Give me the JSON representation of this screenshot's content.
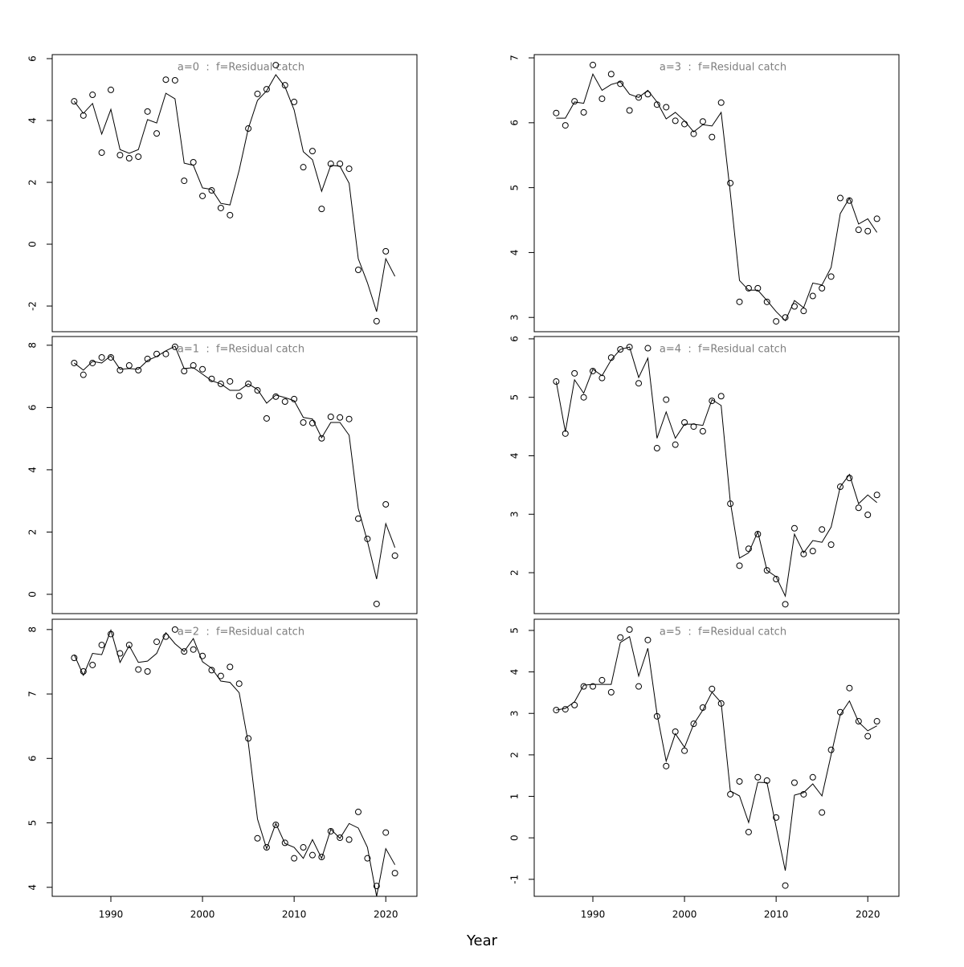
{
  "xlabel": "Year",
  "chart_data": [
    {
      "type": "line",
      "title": "a=0  :  f=Residual catch",
      "x": [
        1986,
        1987,
        1988,
        1989,
        1990,
        1991,
        1992,
        1993,
        1994,
        1995,
        1996,
        1997,
        1998,
        1999,
        2000,
        2001,
        2002,
        2003,
        2004,
        2005,
        2006,
        2007,
        2008,
        2009,
        2010,
        2011,
        2012,
        2013,
        2014,
        2015,
        2016,
        2017,
        2018,
        2019,
        2020,
        2021
      ],
      "xlim": [
        1983.6,
        2023.4
      ],
      "ylim": [
        -2.83,
        6.13
      ],
      "yticks": [
        -2,
        0,
        2,
        4,
        6
      ],
      "series": [
        {
          "marker": "circle",
          "color": "#000000",
          "values": [
            4.62,
            4.16,
            4.83,
            2.96,
            4.99,
            2.88,
            2.78,
            2.83,
            4.29,
            3.58,
            5.32,
            5.3,
            2.05,
            2.65,
            1.56,
            1.74,
            1.17,
            0.94,
            null,
            3.74,
            4.86,
            5.01,
            5.79,
            5.14,
            4.6,
            2.49,
            3.01,
            1.14,
            2.6,
            2.6,
            2.44,
            -0.83,
            null,
            -2.49,
            -0.23,
            null
          ]
        },
        {
          "marker": "line",
          "color": "#000000",
          "values": [
            4.62,
            4.23,
            4.55,
            3.56,
            4.36,
            3.06,
            2.94,
            3.06,
            4.03,
            3.92,
            4.88,
            4.7,
            2.62,
            2.55,
            1.82,
            1.77,
            1.32,
            1.27,
            2.39,
            3.74,
            4.65,
            4.96,
            5.48,
            5.09,
            4.34,
            2.99,
            2.73,
            1.71,
            2.55,
            2.52,
            1.97,
            -0.47,
            -1.25,
            -2.18,
            -0.47,
            -1.04
          ]
        }
      ]
    },
    {
      "type": "line",
      "title": "a=1  :  f=Residual catch",
      "x": [
        1986,
        1987,
        1988,
        1989,
        1990,
        1991,
        1992,
        1993,
        1994,
        1995,
        1996,
        1997,
        1998,
        1999,
        2000,
        2001,
        2002,
        2003,
        2004,
        2005,
        2006,
        2007,
        2008,
        2009,
        2010,
        2011,
        2012,
        2013,
        2014,
        2015,
        2016,
        2017,
        2018,
        2019,
        2020,
        2021
      ],
      "xlim": [
        1983.6,
        2023.4
      ],
      "ylim": [
        -0.62,
        8.28
      ],
      "yticks": [
        0,
        2,
        4,
        6,
        8
      ],
      "series": [
        {
          "marker": "circle",
          "color": "#000000",
          "values": [
            7.43,
            7.05,
            7.43,
            7.61,
            7.61,
            7.2,
            7.35,
            7.2,
            7.56,
            7.72,
            7.72,
            7.95,
            7.17,
            7.35,
            7.23,
            6.92,
            6.76,
            6.84,
            6.37,
            6.76,
            6.55,
            5.65,
            6.35,
            6.19,
            6.27,
            5.52,
            5.5,
            5.01,
            5.7,
            5.68,
            5.63,
            2.43,
            1.78,
            -0.31,
            2.89,
            1.24
          ]
        },
        {
          "marker": "line",
          "color": "#000000",
          "values": [
            7.43,
            7.2,
            7.48,
            7.43,
            7.66,
            7.23,
            7.25,
            7.23,
            7.51,
            7.64,
            7.82,
            7.97,
            7.25,
            7.28,
            7.07,
            6.86,
            6.76,
            6.55,
            6.55,
            6.76,
            6.58,
            6.14,
            6.4,
            6.32,
            6.22,
            5.68,
            5.63,
            5.03,
            5.52,
            5.52,
            5.11,
            2.76,
            1.7,
            0.49,
            2.27,
            1.5
          ]
        }
      ]
    },
    {
      "type": "line",
      "title": "a=2  :  f=Residual catch",
      "x": [
        1986,
        1987,
        1988,
        1989,
        1990,
        1991,
        1992,
        1993,
        1994,
        1995,
        1996,
        1997,
        1998,
        1999,
        2000,
        2001,
        2002,
        2003,
        2004,
        2005,
        2006,
        2007,
        2008,
        2009,
        2010,
        2011,
        2012,
        2013,
        2014,
        2015,
        2016,
        2017,
        2018,
        2019,
        2020,
        2021
      ],
      "xlim": [
        1983.6,
        2023.4
      ],
      "ylim": [
        3.86,
        8.16
      ],
      "yticks": [
        4,
        5,
        6,
        7,
        8
      ],
      "xticks": [
        1990,
        2000,
        2010,
        2020
      ],
      "series": [
        {
          "marker": "circle",
          "color": "#000000",
          "values": [
            7.56,
            7.35,
            7.45,
            7.76,
            7.93,
            7.63,
            7.76,
            7.38,
            7.35,
            7.81,
            7.89,
            8.0,
            7.66,
            7.69,
            7.59,
            7.37,
            7.28,
            7.42,
            7.16,
            6.31,
            4.76,
            4.62,
            4.97,
            4.69,
            4.45,
            4.62,
            4.5,
            4.47,
            4.87,
            4.77,
            4.74,
            5.17,
            4.45,
            4.02,
            4.85,
            4.22
          ]
        },
        {
          "marker": "line",
          "color": "#000000",
          "values": [
            7.61,
            7.29,
            7.63,
            7.61,
            7.99,
            7.49,
            7.75,
            7.49,
            7.51,
            7.63,
            7.95,
            7.78,
            7.66,
            7.86,
            7.5,
            7.4,
            7.2,
            7.18,
            7.02,
            6.24,
            5.06,
            4.6,
            4.99,
            4.68,
            4.62,
            4.45,
            4.74,
            4.45,
            4.9,
            4.76,
            4.99,
            4.92,
            4.62,
            3.86,
            4.6,
            4.35
          ]
        }
      ]
    },
    {
      "type": "line",
      "title": "a=3  :  f=Residual catch",
      "x": [
        1986,
        1987,
        1988,
        1989,
        1990,
        1991,
        1992,
        1993,
        1994,
        1995,
        1996,
        1997,
        1998,
        1999,
        2000,
        2001,
        2002,
        2003,
        2004,
        2005,
        2006,
        2007,
        2008,
        2009,
        2010,
        2011,
        2012,
        2013,
        2014,
        2015,
        2016,
        2017,
        2018,
        2019,
        2020,
        2021
      ],
      "xlim": [
        1983.6,
        2023.4
      ],
      "ylim": [
        2.78,
        7.05
      ],
      "yticks": [
        3,
        4,
        5,
        6,
        7
      ],
      "series": [
        {
          "marker": "circle",
          "color": "#000000",
          "values": [
            6.15,
            5.96,
            6.33,
            6.16,
            6.89,
            6.37,
            6.75,
            6.6,
            6.19,
            6.39,
            6.44,
            6.28,
            6.24,
            6.03,
            5.98,
            5.83,
            6.02,
            5.78,
            6.31,
            5.07,
            3.24,
            3.45,
            3.45,
            3.24,
            2.94,
            3.0,
            3.17,
            3.1,
            3.33,
            3.45,
            3.63,
            4.84,
            4.8,
            4.35,
            4.33,
            4.52
          ]
        },
        {
          "marker": "line",
          "color": "#000000",
          "values": [
            6.07,
            6.07,
            6.32,
            6.3,
            6.75,
            6.5,
            6.59,
            6.63,
            6.44,
            6.39,
            6.5,
            6.32,
            6.06,
            6.16,
            6.03,
            5.86,
            5.97,
            5.95,
            6.16,
            4.92,
            3.57,
            3.42,
            3.42,
            3.26,
            3.09,
            2.95,
            3.26,
            3.15,
            3.53,
            3.5,
            3.77,
            4.6,
            4.84,
            4.44,
            4.52,
            4.31
          ]
        }
      ]
    },
    {
      "type": "line",
      "title": "a=4  :  f=Residual catch",
      "x": [
        1986,
        1987,
        1988,
        1989,
        1990,
        1991,
        1992,
        1993,
        1994,
        1995,
        1996,
        1997,
        1998,
        1999,
        2000,
        2001,
        2002,
        2003,
        2004,
        2005,
        2006,
        2007,
        2008,
        2009,
        2010,
        2011,
        2012,
        2013,
        2014,
        2015,
        2016,
        2017,
        2018,
        2019,
        2020,
        2021
      ],
      "xlim": [
        1983.6,
        2023.4
      ],
      "ylim": [
        1.3,
        6.04
      ],
      "yticks": [
        2,
        3,
        4,
        5,
        6
      ],
      "series": [
        {
          "marker": "circle",
          "color": "#000000",
          "values": [
            5.27,
            4.38,
            5.41,
            5.0,
            5.45,
            5.33,
            5.68,
            5.82,
            5.86,
            5.24,
            5.84,
            4.13,
            4.96,
            4.19,
            4.57,
            4.5,
            4.42,
            4.94,
            5.02,
            3.18,
            2.12,
            2.41,
            2.66,
            2.04,
            1.89,
            1.46,
            2.76,
            2.32,
            2.37,
            2.74,
            2.48,
            3.47,
            3.62,
            3.11,
            2.99,
            3.33
          ]
        },
        {
          "marker": "line",
          "color": "#000000",
          "values": [
            5.27,
            4.41,
            5.3,
            5.07,
            5.48,
            5.37,
            5.64,
            5.82,
            5.86,
            5.34,
            5.67,
            4.3,
            4.75,
            4.3,
            4.54,
            4.54,
            4.52,
            4.96,
            4.86,
            3.21,
            2.25,
            2.34,
            2.7,
            2.04,
            1.93,
            1.6,
            2.66,
            2.34,
            2.55,
            2.52,
            2.78,
            3.47,
            3.68,
            3.18,
            3.33,
            3.2
          ]
        }
      ]
    },
    {
      "type": "line",
      "title": "a=5  :  f=Residual catch",
      "x": [
        1986,
        1987,
        1988,
        1989,
        1990,
        1991,
        1992,
        1993,
        1994,
        1995,
        1996,
        1997,
        1998,
        1999,
        2000,
        2001,
        2002,
        2003,
        2004,
        2005,
        2006,
        2007,
        2008,
        2009,
        2010,
        2011,
        2012,
        2013,
        2014,
        2015,
        2016,
        2017,
        2018,
        2019,
        2020,
        2021
      ],
      "xlim": [
        1983.6,
        2023.4
      ],
      "ylim": [
        -1.41,
        5.27
      ],
      "yticks": [
        -1,
        0,
        1,
        2,
        3,
        4,
        5
      ],
      "xticks": [
        1990,
        2000,
        2010,
        2020
      ],
      "series": [
        {
          "marker": "circle",
          "color": "#000000",
          "values": [
            3.08,
            3.1,
            3.2,
            3.65,
            3.65,
            3.8,
            3.51,
            4.83,
            5.02,
            3.65,
            4.77,
            2.93,
            1.73,
            2.56,
            2.1,
            2.75,
            3.14,
            3.59,
            3.24,
            1.05,
            1.36,
            0.14,
            1.46,
            1.38,
            0.49,
            -1.15,
            1.33,
            1.05,
            1.46,
            0.61,
            2.12,
            3.03,
            3.61,
            2.81,
            2.45,
            2.81
          ]
        },
        {
          "marker": "line",
          "color": "#000000",
          "values": [
            3.08,
            3.12,
            3.28,
            3.68,
            3.7,
            3.7,
            3.7,
            4.71,
            4.85,
            3.9,
            4.57,
            2.99,
            1.85,
            2.51,
            2.18,
            2.74,
            3.08,
            3.51,
            3.26,
            1.13,
            1.01,
            0.37,
            1.34,
            1.33,
            0.26,
            -0.79,
            1.03,
            1.09,
            1.3,
            1.01,
            2.0,
            2.97,
            3.3,
            2.79,
            2.58,
            2.7
          ]
        }
      ]
    }
  ]
}
